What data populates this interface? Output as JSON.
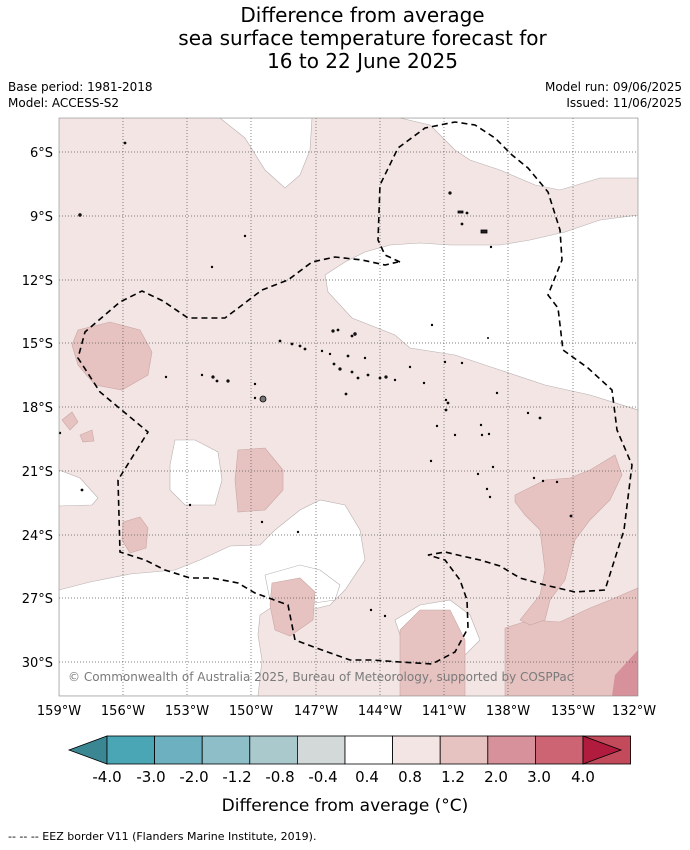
{
  "title": {
    "line1": "Difference from average",
    "line2": "sea surface temperature forecast for",
    "line3": "16 to 22 June 2025"
  },
  "meta": {
    "base_period": "Base period: 1981-2018",
    "model": "Model: ACCESS-S2",
    "model_run": "Model run: 09/06/2025",
    "issued": "Issued: 11/06/2025"
  },
  "map": {
    "lat_labels": [
      "6°S",
      "9°S",
      "12°S",
      "15°S",
      "18°S",
      "21°S",
      "24°S",
      "27°S",
      "30°S"
    ],
    "lon_labels": [
      "159°W",
      "156°W",
      "153°W",
      "150°W",
      "147°W",
      "144°W",
      "141°W",
      "138°W",
      "135°W",
      "132°W"
    ],
    "copyright": "© Commonwealth of Australia 2025, Bureau of Meteorology, supported by COSPPac",
    "grid": true,
    "border_style": "dashed"
  },
  "legend": {
    "title": "Difference from average (°C)",
    "tick_labels": [
      "-4.0",
      "-3.0",
      "-2.0",
      "-1.2",
      "-0.8",
      "-0.4",
      "0.4",
      "0.8",
      "1.2",
      "2.0",
      "3.0",
      "4.0"
    ],
    "colors": [
      "#3a8793",
      "#4aa6b5",
      "#6db0bf",
      "#8ebfc8",
      "#a9c9cd",
      "#d3d8d9",
      "#ffffff",
      "#f3e5e4",
      "#e6c3c1",
      "#d6919a",
      "#cc6473",
      "#c24a5a",
      "#b01b3e"
    ]
  },
  "footer": {
    "eez_note": "--  --  -- EEZ border V11 (Flanders Marine Institute, 2019)."
  }
}
